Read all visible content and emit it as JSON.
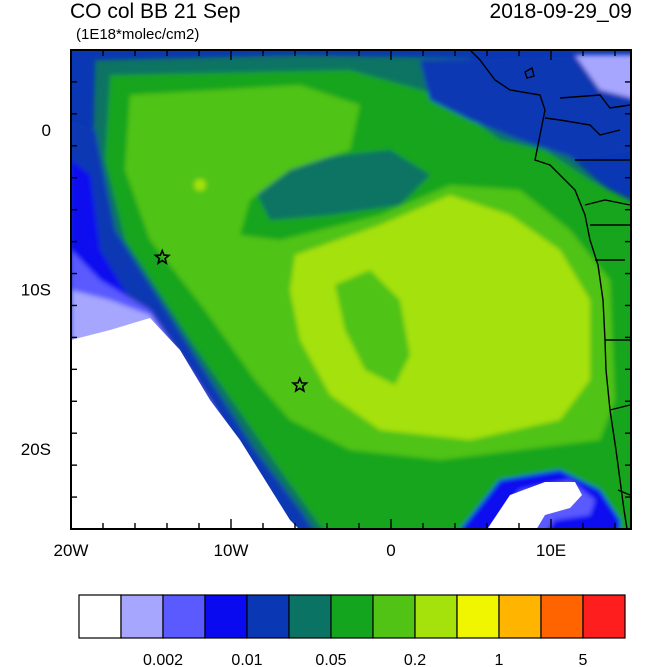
{
  "header": {
    "title": "CO col BB 21 Sep",
    "units": "(1E18*molec/cm2)",
    "datetime": "2018-09-29_09"
  },
  "map": {
    "lon_range": [
      -20,
      15
    ],
    "lat_range": [
      -25,
      5
    ],
    "x_ticks": [
      {
        "lon": -20,
        "label": "20W"
      },
      {
        "lon": -10,
        "label": "10W"
      },
      {
        "lon": 0,
        "label": "0"
      },
      {
        "lon": 10,
        "label": "10E"
      }
    ],
    "y_ticks": [
      {
        "lat": 0,
        "label": "0"
      },
      {
        "lat": -10,
        "label": "10S"
      },
      {
        "lat": -20,
        "label": "20S"
      }
    ],
    "markers": [
      {
        "name": "star-marker",
        "lon": -14.3,
        "lat": -8.0
      },
      {
        "name": "star-marker",
        "lon": -5.7,
        "lat": -16.0
      }
    ]
  },
  "colorbar": {
    "colors": [
      "#ffffff",
      "#a6a6ff",
      "#5a5aff",
      "#0a0af0",
      "#0a37b4",
      "#0a7364",
      "#14a51e",
      "#50c314",
      "#a5e10a",
      "#f0f500",
      "#ffb400",
      "#ff6400",
      "#ff1e1e"
    ],
    "labels": [
      {
        "boundary": 2,
        "text": "0.002"
      },
      {
        "boundary": 4,
        "text": "0.01"
      },
      {
        "boundary": 6,
        "text": "0.05"
      },
      {
        "boundary": 8,
        "text": "0.2"
      },
      {
        "boundary": 10,
        "text": "1"
      },
      {
        "boundary": 12,
        "text": "5"
      }
    ]
  }
}
